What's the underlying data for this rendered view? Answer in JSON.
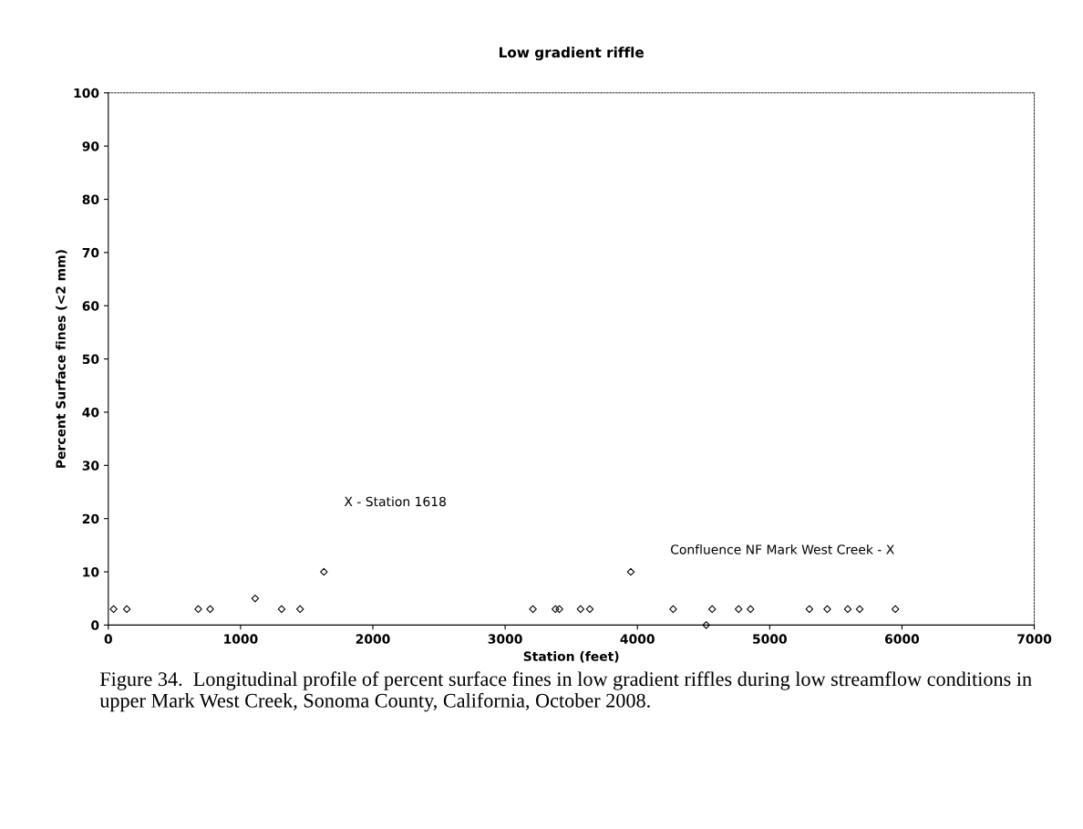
{
  "chart_data": {
    "type": "scatter",
    "title": "Low gradient riffle",
    "xlabel": "Station (feet)",
    "ylabel": "Percent Surface fines (<2 mm)",
    "x": [
      40,
      140,
      680,
      770,
      1110,
      1310,
      1450,
      1630,
      3210,
      3380,
      3410,
      3570,
      3640,
      3950,
      4270,
      4520,
      4565,
      4765,
      4855,
      5300,
      5435,
      5590,
      5680,
      5950
    ],
    "values": [
      3,
      3,
      3,
      3,
      5,
      3,
      3,
      10,
      3,
      3,
      3,
      3,
      3,
      10,
      3,
      0,
      3,
      3,
      3,
      3,
      3,
      3,
      3,
      3
    ],
    "color": "#000000",
    "marker": "diamond",
    "grid": false,
    "legend": false,
    "xlim": [
      0,
      7000
    ],
    "xticks": [
      0,
      1000,
      2000,
      3000,
      4000,
      5000,
      6000,
      7000
    ],
    "ylim": [
      0,
      100
    ],
    "yticks": [
      0,
      10,
      20,
      30,
      40,
      50,
      60,
      70,
      80,
      90,
      100
    ],
    "annotations": [
      "X - Station 1618",
      "Confluence NF Mark West Creek - X",
      "Figure 34.  Longitudinal profile of percent surface fines in low gradient riffles during low streamflow conditions in upper Mark West Creek, Sonoma County, California, October 2008."
    ]
  }
}
